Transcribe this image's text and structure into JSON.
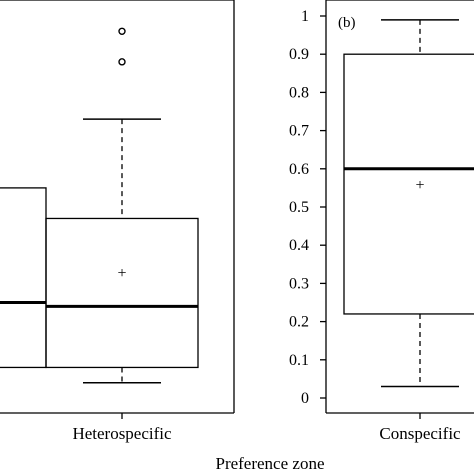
{
  "chart_data": [
    {
      "type": "boxplot",
      "panel_label": "",
      "ylim": [
        0,
        1
      ],
      "categories": [
        "",
        "Heterospecific"
      ],
      "boxes": [
        {
          "category": "",
          "q1": 0.08,
          "median": 0.25,
          "q3": 0.55
        },
        {
          "category": "Heterospecific",
          "whisker_low": 0.04,
          "q1": 0.08,
          "median": 0.24,
          "mean": 0.33,
          "q3": 0.47,
          "whisker_high": 0.73,
          "outliers": [
            0.88,
            0.96
          ]
        }
      ]
    },
    {
      "type": "boxplot",
      "panel_label": "(b)",
      "ylim": [
        0,
        1
      ],
      "yticks": [
        "0",
        "0.1",
        "0.2",
        "0.3",
        "0.4",
        "0.5",
        "0.6",
        "0.7",
        "0.8",
        "0.9",
        "1"
      ],
      "categories": [
        "Conspecific"
      ],
      "boxes": [
        {
          "category": "Conspecific",
          "whisker_low": 0.03,
          "q1": 0.22,
          "median": 0.6,
          "mean": 0.56,
          "q3": 0.9,
          "whisker_high": 0.99
        }
      ]
    }
  ],
  "xlabel": "Preference zone"
}
